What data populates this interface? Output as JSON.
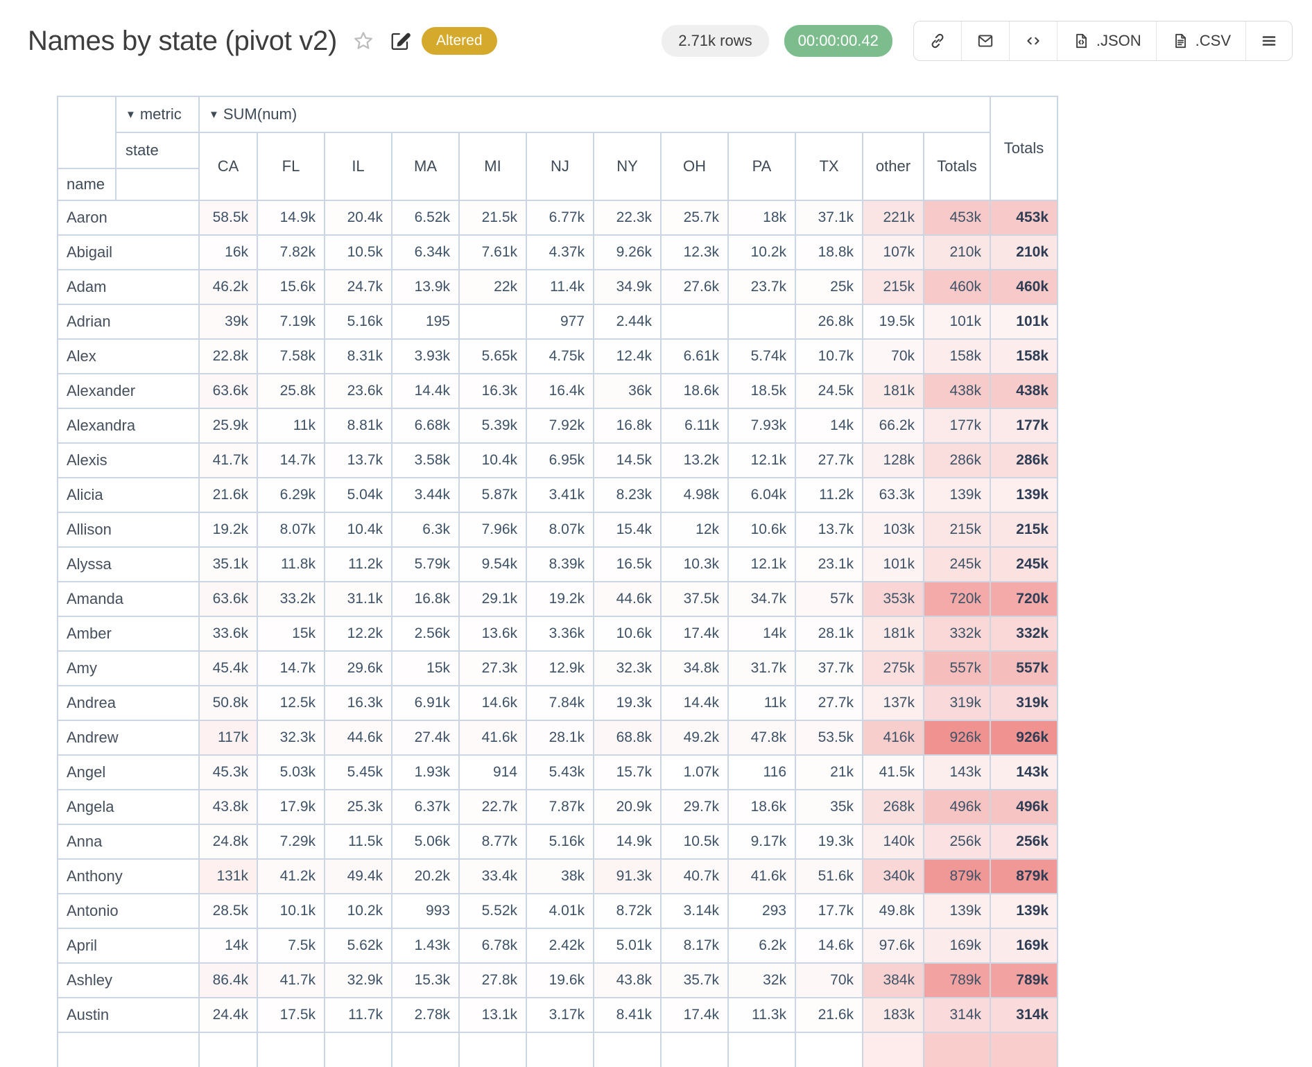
{
  "header": {
    "title": "Names by state (pivot v2)",
    "altered_badge": "Altered",
    "rows_badge": "2.71k rows",
    "duration_badge": "00:00:00.42",
    "export_json_label": ".JSON",
    "export_csv_label": ".CSV"
  },
  "pivot": {
    "metric_axis_label": "metric",
    "metric_name": "SUM(num)",
    "col_axis_label": "state",
    "row_axis_label": "name",
    "col_headers": [
      "CA",
      "FL",
      "IL",
      "MA",
      "MI",
      "NJ",
      "NY",
      "OH",
      "PA",
      "TX",
      "other",
      "Totals"
    ],
    "grand_total_header": "Totals",
    "heat_color_rgb": "239,146,144",
    "rows": [
      {
        "name": "Aaron",
        "values": [
          "58.5k",
          "14.9k",
          "20.4k",
          "6.52k",
          "21.5k",
          "6.77k",
          "22.3k",
          "25.7k",
          "18k",
          "37.1k",
          "221k",
          "453k"
        ],
        "total": "453k"
      },
      {
        "name": "Abigail",
        "values": [
          "16k",
          "7.82k",
          "10.5k",
          "6.34k",
          "7.61k",
          "4.37k",
          "9.26k",
          "12.3k",
          "10.2k",
          "18.8k",
          "107k",
          "210k"
        ],
        "total": "210k"
      },
      {
        "name": "Adam",
        "values": [
          "46.2k",
          "15.6k",
          "24.7k",
          "13.9k",
          "22k",
          "11.4k",
          "34.9k",
          "27.6k",
          "23.7k",
          "25k",
          "215k",
          "460k"
        ],
        "total": "460k"
      },
      {
        "name": "Adrian",
        "values": [
          "39k",
          "7.19k",
          "5.16k",
          "195",
          "",
          "977",
          "2.44k",
          "",
          "",
          "26.8k",
          "19.5k",
          "101k"
        ],
        "total": "101k"
      },
      {
        "name": "Alex",
        "values": [
          "22.8k",
          "7.58k",
          "8.31k",
          "3.93k",
          "5.65k",
          "4.75k",
          "12.4k",
          "6.61k",
          "5.74k",
          "10.7k",
          "70k",
          "158k"
        ],
        "total": "158k"
      },
      {
        "name": "Alexander",
        "values": [
          "63.6k",
          "25.8k",
          "23.6k",
          "14.4k",
          "16.3k",
          "16.4k",
          "36k",
          "18.6k",
          "18.5k",
          "24.5k",
          "181k",
          "438k"
        ],
        "total": "438k"
      },
      {
        "name": "Alexandra",
        "values": [
          "25.9k",
          "11k",
          "8.81k",
          "6.68k",
          "5.39k",
          "7.92k",
          "16.8k",
          "6.11k",
          "7.93k",
          "14k",
          "66.2k",
          "177k"
        ],
        "total": "177k"
      },
      {
        "name": "Alexis",
        "values": [
          "41.7k",
          "14.7k",
          "13.7k",
          "3.58k",
          "10.4k",
          "6.95k",
          "14.5k",
          "13.2k",
          "12.1k",
          "27.7k",
          "128k",
          "286k"
        ],
        "total": "286k"
      },
      {
        "name": "Alicia",
        "values": [
          "21.6k",
          "6.29k",
          "5.04k",
          "3.44k",
          "5.87k",
          "3.41k",
          "8.23k",
          "4.98k",
          "6.04k",
          "11.2k",
          "63.3k",
          "139k"
        ],
        "total": "139k"
      },
      {
        "name": "Allison",
        "values": [
          "19.2k",
          "8.07k",
          "10.4k",
          "6.3k",
          "7.96k",
          "8.07k",
          "15.4k",
          "12k",
          "10.6k",
          "13.7k",
          "103k",
          "215k"
        ],
        "total": "215k"
      },
      {
        "name": "Alyssa",
        "values": [
          "35.1k",
          "11.8k",
          "11.2k",
          "5.79k",
          "9.54k",
          "8.39k",
          "16.5k",
          "10.3k",
          "12.1k",
          "23.1k",
          "101k",
          "245k"
        ],
        "total": "245k"
      },
      {
        "name": "Amanda",
        "values": [
          "63.6k",
          "33.2k",
          "31.1k",
          "16.8k",
          "29.1k",
          "19.2k",
          "44.6k",
          "37.5k",
          "34.7k",
          "57k",
          "353k",
          "720k"
        ],
        "total": "720k"
      },
      {
        "name": "Amber",
        "values": [
          "33.6k",
          "15k",
          "12.2k",
          "2.56k",
          "13.6k",
          "3.36k",
          "10.6k",
          "17.4k",
          "14k",
          "28.1k",
          "181k",
          "332k"
        ],
        "total": "332k"
      },
      {
        "name": "Amy",
        "values": [
          "45.4k",
          "14.7k",
          "29.6k",
          "15k",
          "27.3k",
          "12.9k",
          "32.3k",
          "34.8k",
          "31.7k",
          "37.7k",
          "275k",
          "557k"
        ],
        "total": "557k"
      },
      {
        "name": "Andrea",
        "values": [
          "50.8k",
          "12.5k",
          "16.3k",
          "6.91k",
          "14.6k",
          "7.84k",
          "19.3k",
          "14.4k",
          "11k",
          "27.7k",
          "137k",
          "319k"
        ],
        "total": "319k"
      },
      {
        "name": "Andrew",
        "values": [
          "117k",
          "32.3k",
          "44.6k",
          "27.4k",
          "41.6k",
          "28.1k",
          "68.8k",
          "49.2k",
          "47.8k",
          "53.5k",
          "416k",
          "926k"
        ],
        "total": "926k"
      },
      {
        "name": "Angel",
        "values": [
          "45.3k",
          "5.03k",
          "5.45k",
          "1.93k",
          "914",
          "5.43k",
          "15.7k",
          "1.07k",
          "116",
          "21k",
          "41.5k",
          "143k"
        ],
        "total": "143k"
      },
      {
        "name": "Angela",
        "values": [
          "43.8k",
          "17.9k",
          "25.3k",
          "6.37k",
          "22.7k",
          "7.87k",
          "20.9k",
          "29.7k",
          "18.6k",
          "35k",
          "268k",
          "496k"
        ],
        "total": "496k"
      },
      {
        "name": "Anna",
        "values": [
          "24.8k",
          "7.29k",
          "11.5k",
          "5.06k",
          "8.77k",
          "5.16k",
          "14.9k",
          "10.5k",
          "9.17k",
          "19.3k",
          "140k",
          "256k"
        ],
        "total": "256k"
      },
      {
        "name": "Anthony",
        "values": [
          "131k",
          "41.2k",
          "49.4k",
          "20.2k",
          "33.4k",
          "38k",
          "91.3k",
          "40.7k",
          "41.6k",
          "51.6k",
          "340k",
          "879k"
        ],
        "total": "879k"
      },
      {
        "name": "Antonio",
        "values": [
          "28.5k",
          "10.1k",
          "10.2k",
          "993",
          "5.52k",
          "4.01k",
          "8.72k",
          "3.14k",
          "293",
          "17.7k",
          "49.8k",
          "139k"
        ],
        "total": "139k"
      },
      {
        "name": "April",
        "values": [
          "14k",
          "7.5k",
          "5.62k",
          "1.43k",
          "6.78k",
          "2.42k",
          "5.01k",
          "8.17k",
          "6.2k",
          "14.6k",
          "97.6k",
          "169k"
        ],
        "total": "169k"
      },
      {
        "name": "Ashley",
        "values": [
          "86.4k",
          "41.7k",
          "32.9k",
          "15.3k",
          "27.8k",
          "19.6k",
          "43.8k",
          "35.7k",
          "32k",
          "70k",
          "384k",
          "789k"
        ],
        "total": "789k"
      },
      {
        "name": "Austin",
        "values": [
          "24.4k",
          "17.5k",
          "11.7k",
          "2.78k",
          "13.1k",
          "3.17k",
          "8.41k",
          "17.4k",
          "11.3k",
          "21.6k",
          "183k",
          "314k"
        ],
        "total": "314k"
      }
    ]
  }
}
